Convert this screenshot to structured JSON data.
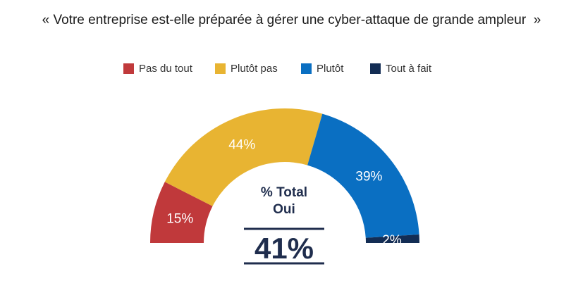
{
  "chart_data": {
    "type": "pie",
    "title": "« Votre entreprise est-elle préparée à gérer une cyber-attaque de grande ampleur  »",
    "legend_position": "top",
    "categories": [
      "Pas du tout",
      "Plutôt pas",
      "Plutôt",
      "Tout à fait"
    ],
    "values": [
      15,
      44,
      39,
      2
    ],
    "value_labels": [
      "15%",
      "44%",
      "39%",
      "2%"
    ],
    "colors": [
      "#c0393b",
      "#e8b432",
      "#0a6fc2",
      "#132d54"
    ],
    "center_label_line1": "% Total",
    "center_label_line2": "Oui",
    "center_value": "41%"
  }
}
